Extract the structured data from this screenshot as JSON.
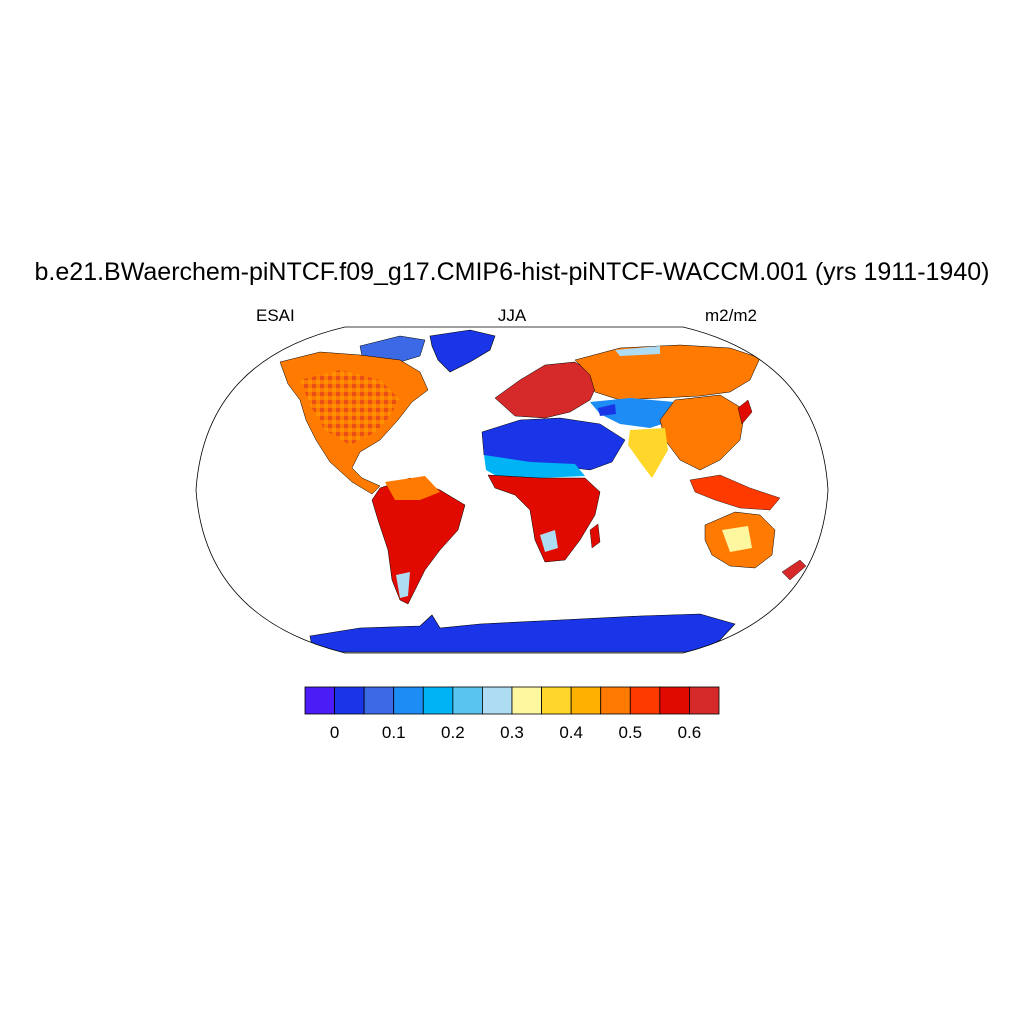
{
  "title": "b.e21.BWaerchem-piNTCF.f09_g17.CMIP6-hist-piNTCF-WACCM.001 (yrs 1911-1940)",
  "subtitle_left": "ESAI",
  "subtitle_center": "JJA",
  "subtitle_right": "m2/m2",
  "map": {
    "projection": "robinson",
    "variable": "ESAI",
    "season": "JJA",
    "units": "m2/m2",
    "ocean_color": "#ffffff",
    "regions": [
      {
        "name": "greenland",
        "class": 0.05
      },
      {
        "name": "antarctica",
        "class": 0.05
      },
      {
        "name": "sahara-arabia",
        "class": 0.05
      },
      {
        "name": "canadian-arctic",
        "class": 0.15
      },
      {
        "name": "tibet-central-asia",
        "class": 0.2
      },
      {
        "name": "north-america",
        "class": 0.45
      },
      {
        "name": "south-america",
        "class": 0.55
      },
      {
        "name": "europe",
        "class": 0.6
      },
      {
        "name": "siberia",
        "class": 0.45
      },
      {
        "name": "africa-subsaharan",
        "class": 0.55
      },
      {
        "name": "australia",
        "class": 0.45
      },
      {
        "name": "southeast-asia",
        "class": 0.5
      }
    ]
  },
  "colorbar": {
    "colors": [
      "#4b1cf5",
      "#1a35e8",
      "#3c6ae6",
      "#1e8cf5",
      "#00b3f5",
      "#5ac4f0",
      "#aedcf2",
      "#fff6a0",
      "#ffd62a",
      "#ffb000",
      "#ff7a00",
      "#ff3a00",
      "#e00a00",
      "#d62a2a"
    ],
    "tick_labels": [
      "0",
      "0.1",
      "0.2",
      "0.3",
      "0.4",
      "0.5",
      "0.6"
    ],
    "tick_values": [
      0,
      0.1,
      0.2,
      0.3,
      0.4,
      0.5,
      0.6
    ]
  }
}
